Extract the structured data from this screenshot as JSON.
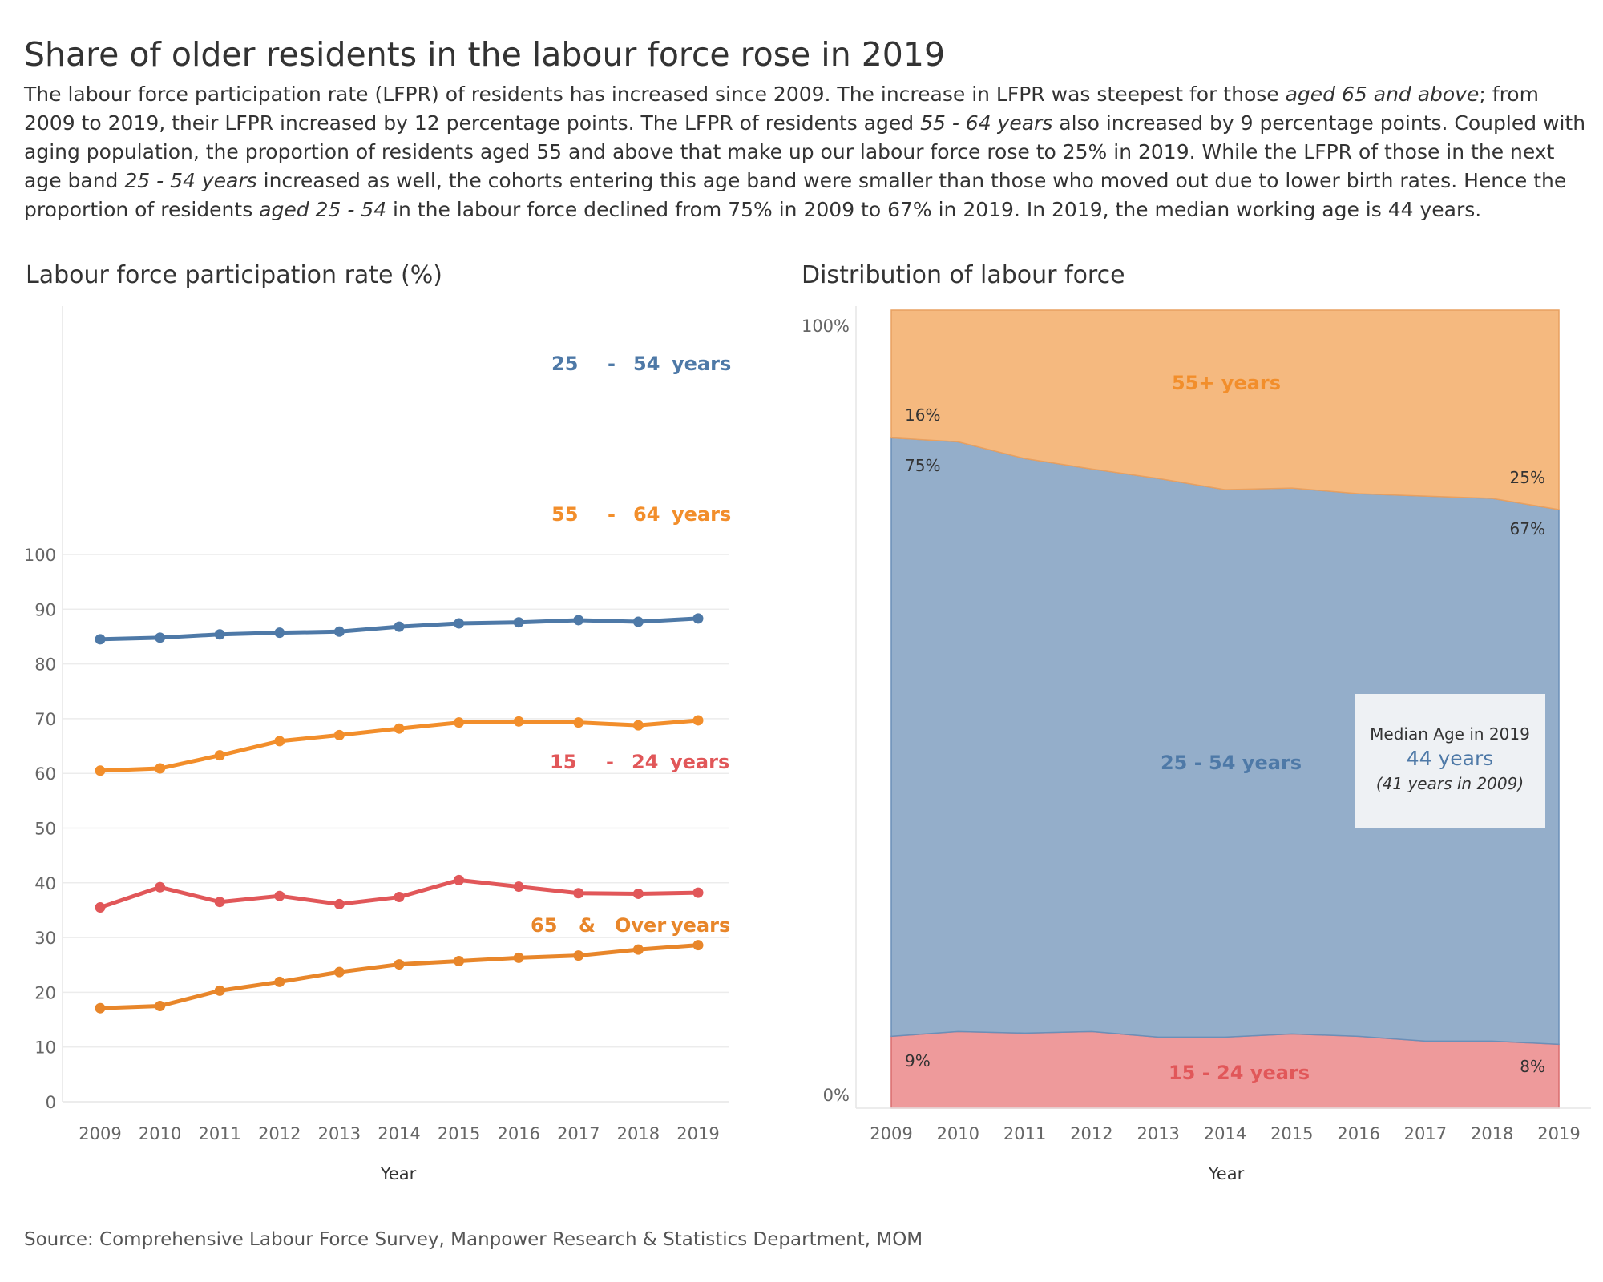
{
  "title": "Share of older residents in the labour force rose in 2019",
  "description": [
    {
      "t": "The labour force participation rate (LFPR) of residents has increased since 2009. The increase in LFPR was steepest for those ",
      "i": false
    },
    {
      "t": "aged 65 and above",
      "i": true
    },
    {
      "t": "; from 2009 to 2019, their LFPR increased by 12 percentage points. The LFPR of residents aged ",
      "i": false
    },
    {
      "t": "55 - 64 years",
      "i": true
    },
    {
      "t": " also increased by 9 percentage points. Coupled with aging population, the proportion of residents aged 55 and above that make up our labour force rose to 25% in 2019. While the LFPR of those in the next age band ",
      "i": false
    },
    {
      "t": "25 - 54 years",
      "i": true
    },
    {
      "t": " increased as well, the cohorts entering this age band were smaller than those who moved out due to lower birth rates. Hence the proportion of residents ",
      "i": false
    },
    {
      "t": "aged 25 - 54",
      "i": true
    },
    {
      "t": " in the labour force declined from 75% in 2009 to 67% in 2019. In 2019, the median working age is 44 years.",
      "i": false
    }
  ],
  "source": "Source: Comprehensive Labour Force Survey, Manpower Research & Statistics Department, MOM",
  "colors": {
    "blue": "#4e79a7",
    "orange": "#f28e2b",
    "dark_orange": "#e8862a",
    "red": "#e15759",
    "area_orange": "#f5b97f",
    "area_blue": "#94aeca",
    "area_red": "#ee9a9b"
  },
  "chart_data": [
    {
      "type": "line",
      "title": "Labour force participation rate (%)",
      "xlabel": "Year",
      "ylabel": "",
      "x": [
        "2009",
        "2010",
        "2011",
        "2012",
        "2013",
        "2014",
        "2015",
        "2016",
        "2017",
        "2018",
        "2019"
      ],
      "ylim": [
        0,
        100
      ],
      "yticks": [
        0,
        10,
        20,
        30,
        40,
        50,
        60,
        70,
        80,
        90,
        100
      ],
      "grid": true,
      "series": [
        {
          "name": "25 - 54 years",
          "color": "#4e79a7",
          "values": [
            84.5,
            84.8,
            85.4,
            85.7,
            85.9,
            86.8,
            87.4,
            87.6,
            88.0,
            87.7,
            88.3
          ]
        },
        {
          "name": "55 - 64 years",
          "color": "#f28e2b",
          "values": [
            60.5,
            60.9,
            63.3,
            65.9,
            67.0,
            68.2,
            69.3,
            69.5,
            69.3,
            68.8,
            69.7
          ]
        },
        {
          "name": "15 - 24 years",
          "color": "#e15759",
          "values": [
            35.5,
            39.2,
            36.5,
            37.6,
            36.1,
            37.4,
            40.5,
            39.3,
            38.1,
            38.0,
            38.2
          ]
        },
        {
          "name": "65 & Over years",
          "color": "#e8862a",
          "values": [
            17.1,
            17.5,
            20.3,
            21.9,
            23.7,
            25.1,
            25.7,
            26.3,
            26.7,
            27.8,
            28.6
          ]
        }
      ]
    },
    {
      "type": "area",
      "stacked": true,
      "title": "Distribution of labour force",
      "xlabel": "Year",
      "x": [
        "2009",
        "2010",
        "2011",
        "2012",
        "2013",
        "2014",
        "2015",
        "2016",
        "2017",
        "2018",
        "2019"
      ],
      "ylim": [
        0,
        100
      ],
      "yticks": [
        "0%",
        "100%"
      ],
      "series": [
        {
          "name": "15 - 24 years",
          "color": "#ee9a9b",
          "values": [
            9.0,
            9.6,
            9.4,
            9.6,
            8.9,
            8.9,
            9.3,
            9.0,
            8.4,
            8.4,
            8.0
          ]
        },
        {
          "name": "25 - 54 years",
          "color": "#94aeca",
          "values": [
            75.0,
            73.9,
            72.0,
            70.5,
            70.0,
            68.6,
            68.4,
            68.0,
            68.3,
            68.0,
            67.0
          ]
        },
        {
          "name": "55+ years",
          "color": "#f5b97f",
          "values": [
            16.0,
            16.5,
            18.6,
            19.9,
            21.1,
            22.5,
            22.3,
            23.0,
            23.3,
            23.6,
            25.0
          ]
        }
      ],
      "annotations": {
        "pct_2009": {
          "55+": "16%",
          "25-54": "75%",
          "15-24": "9%"
        },
        "pct_2019": {
          "55+": "25%",
          "25-54": "67%",
          "15-24": "8%"
        }
      }
    }
  ],
  "line_labels": [
    {
      "parts": [
        "25",
        "-",
        "54",
        "years"
      ]
    },
    {
      "parts": [
        "55",
        "-",
        "64",
        "years"
      ]
    },
    {
      "parts": [
        "15",
        "-",
        "24",
        "years"
      ]
    },
    {
      "parts": [
        "65",
        "&",
        "Over",
        "years"
      ]
    }
  ],
  "median_box": {
    "title": "Median Age in 2019",
    "value": "44 years",
    "note": "(41 years in 2009)"
  }
}
